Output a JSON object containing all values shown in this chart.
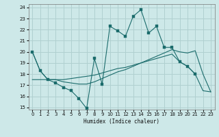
{
  "bg_color": "#cde8e8",
  "grid_color": "#b0d0d0",
  "line_color": "#1a6b6b",
  "xlabel": "Humidex (Indice chaleur)",
  "xlim": [
    -0.5,
    23.5
  ],
  "ylim": [
    14.8,
    24.3
  ],
  "yticks": [
    15,
    16,
    17,
    18,
    19,
    20,
    21,
    22,
    23,
    24
  ],
  "xticks": [
    0,
    1,
    2,
    3,
    4,
    5,
    6,
    7,
    8,
    9,
    10,
    11,
    12,
    13,
    14,
    15,
    16,
    17,
    18,
    19,
    20,
    21,
    22,
    23
  ],
  "series1_x": [
    0,
    1,
    2,
    3,
    4,
    5,
    6,
    7,
    8,
    9,
    10,
    11,
    12,
    13,
    14,
    15,
    16,
    17,
    18,
    19,
    20,
    21
  ],
  "series1_y": [
    20.0,
    18.3,
    17.5,
    17.2,
    16.8,
    16.5,
    15.8,
    14.9,
    19.4,
    17.1,
    22.3,
    21.9,
    21.4,
    23.2,
    23.8,
    21.7,
    22.3,
    20.4,
    20.4,
    19.1,
    18.7,
    18.0
  ],
  "series2_x": [
    0,
    1,
    2,
    3,
    4,
    5,
    6,
    7,
    8,
    9,
    10,
    11,
    12,
    13,
    14,
    15,
    16,
    17,
    18,
    19,
    20,
    21,
    22,
    23
  ],
  "series2_y": [
    17.5,
    17.5,
    17.5,
    17.5,
    17.5,
    17.6,
    17.7,
    17.8,
    17.9,
    18.1,
    18.3,
    18.5,
    18.6,
    18.8,
    19.0,
    19.2,
    19.4,
    19.6,
    19.8,
    19.1,
    18.7,
    18.0,
    16.5,
    16.4
  ],
  "series3_x": [
    0,
    1,
    2,
    3,
    4,
    5,
    6,
    7,
    8,
    9,
    10,
    11,
    12,
    13,
    14,
    15,
    16,
    17,
    18,
    19,
    20,
    21,
    22,
    23
  ],
  "series3_y": [
    20.0,
    18.3,
    17.5,
    17.5,
    17.3,
    17.2,
    17.1,
    17.1,
    17.3,
    17.6,
    17.9,
    18.2,
    18.4,
    18.7,
    19.0,
    19.3,
    19.6,
    19.9,
    20.2,
    20.0,
    19.9,
    20.1,
    18.0,
    16.4
  ]
}
